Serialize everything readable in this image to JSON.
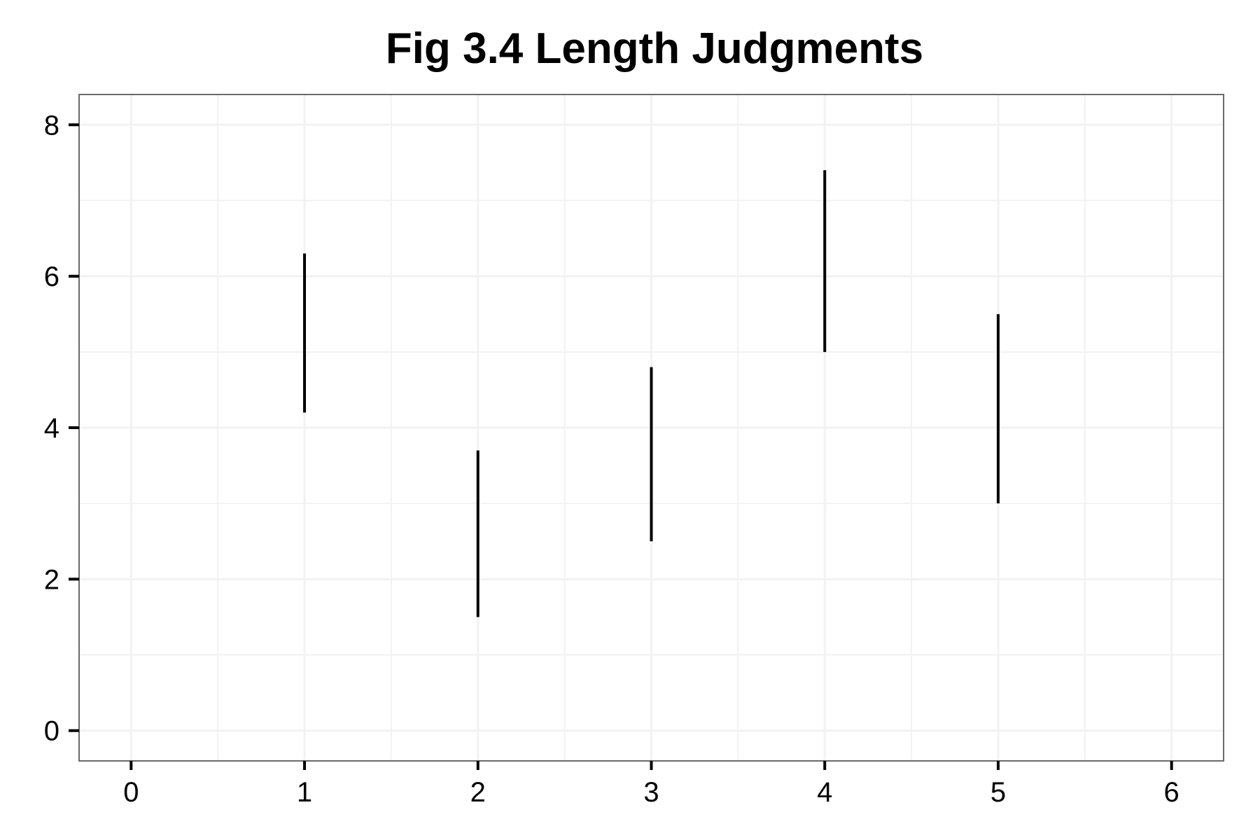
{
  "chart_data": {
    "type": "segment",
    "title": "Fig 3.4 Length Judgments",
    "xlabel": "",
    "ylabel": "",
    "xlim": [
      -0.3,
      6.3
    ],
    "ylim": [
      -0.4,
      8.4
    ],
    "x_ticks": [
      0,
      1,
      2,
      3,
      4,
      5,
      6
    ],
    "y_ticks": [
      0,
      2,
      4,
      6,
      8
    ],
    "grid": true,
    "legend": "none",
    "segments": [
      {
        "x": 1,
        "y_start": 4.2,
        "y_end": 6.3
      },
      {
        "x": 2,
        "y_start": 1.5,
        "y_end": 3.7
      },
      {
        "x": 3,
        "y_start": 2.5,
        "y_end": 4.8
      },
      {
        "x": 4,
        "y_start": 5.0,
        "y_end": 7.4
      },
      {
        "x": 5,
        "y_start": 3.0,
        "y_end": 5.5
      }
    ],
    "colors": {
      "segment": "#000000",
      "panel_border": "#6b6b6b",
      "grid": "#f2f2f2",
      "background": "#ffffff"
    }
  }
}
